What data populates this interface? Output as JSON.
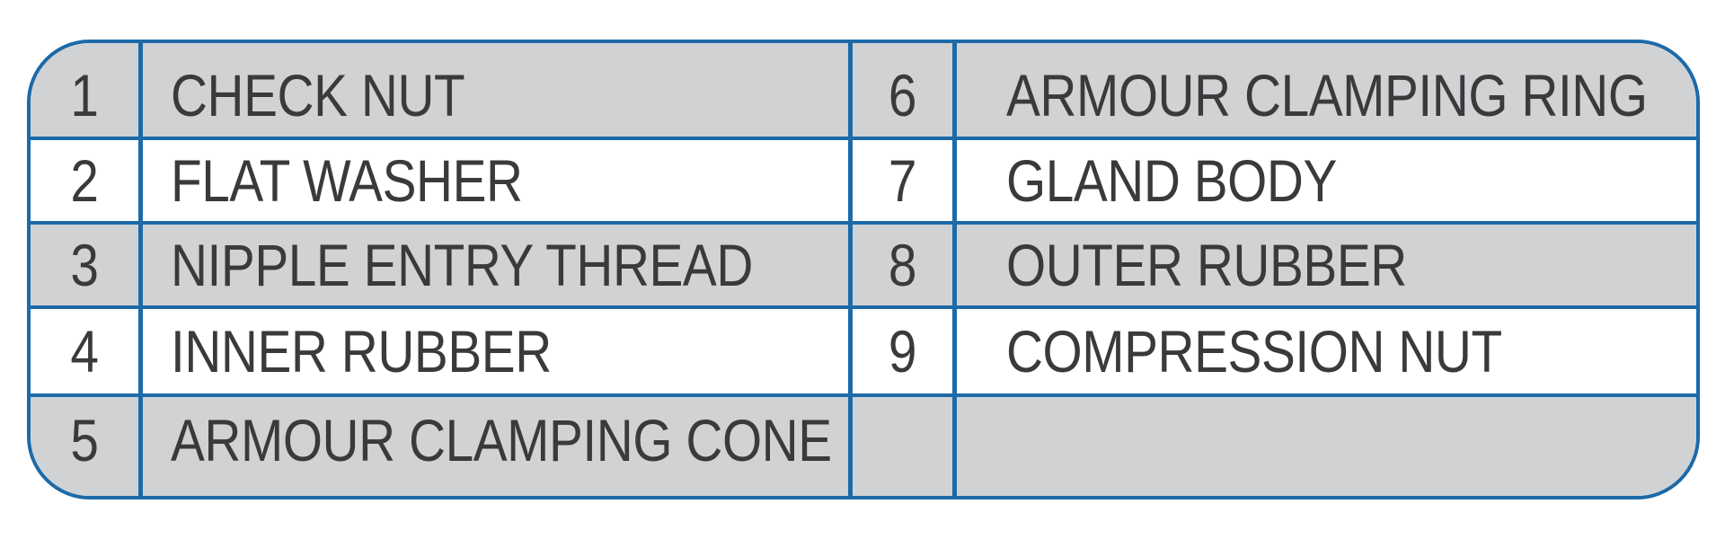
{
  "parts": {
    "rows": [
      {
        "left_no": "1",
        "left_name": "CHECK NUT",
        "right_no": "6",
        "right_name": "ARMOUR CLAMPING RING"
      },
      {
        "left_no": "2",
        "left_name": "FLAT WASHER",
        "right_no": "7",
        "right_name": "GLAND BODY"
      },
      {
        "left_no": "3",
        "left_name": "NIPPLE ENTRY THREAD",
        "right_no": "8",
        "right_name": "OUTER RUBBER"
      },
      {
        "left_no": "4",
        "left_name": "INNER RUBBER",
        "right_no": "9",
        "right_name": "COMPRESSION NUT"
      },
      {
        "left_no": "5",
        "left_name": "ARMOUR CLAMPING CONE",
        "right_no": "",
        "right_name": ""
      }
    ]
  },
  "colors": {
    "border": "#1c6aa8",
    "shaded_row": "#d1d2d4",
    "plain_row": "#ffffff",
    "text": "#3a3a3c"
  }
}
